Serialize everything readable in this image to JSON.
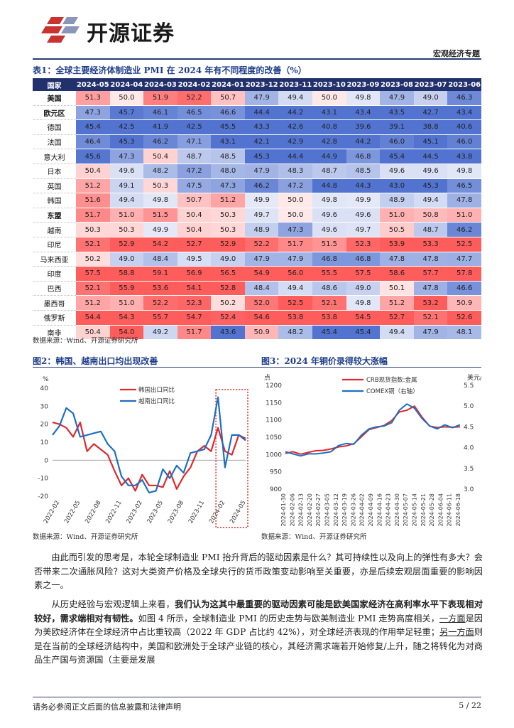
{
  "header": {
    "brand": "开源证券",
    "report_type": "宏观经济专题",
    "brand_color": "#c9322f"
  },
  "table1": {
    "caption": "表1：全球主要经济体制造业 PMI 在 2024 年有不同程度的改善（%）",
    "corner_label": "国家",
    "columns": [
      "2024-05",
      "2024-04",
      "2024-03",
      "2024-02",
      "2024-01",
      "2023-12",
      "2023-11",
      "2023-10",
      "2023-09",
      "2023-08",
      "2023-07",
      "2023-06"
    ],
    "rows": [
      {
        "name": "美国",
        "bold": true,
        "values": [
          51.3,
          50.0,
          51.9,
          52.2,
          50.7,
          47.9,
          49.4,
          50.0,
          49.8,
          47.9,
          49.0,
          46.3
        ]
      },
      {
        "name": "欧元区",
        "bold": true,
        "values": [
          47.3,
          45.7,
          46.1,
          46.5,
          46.6,
          44.4,
          44.2,
          43.1,
          43.4,
          43.5,
          42.7,
          43.4
        ]
      },
      {
        "name": "德国",
        "bold": false,
        "values": [
          45.4,
          42.5,
          41.9,
          42.5,
          45.5,
          43.3,
          42.6,
          40.8,
          39.6,
          39.1,
          38.8,
          40.6
        ]
      },
      {
        "name": "法国",
        "bold": false,
        "values": [
          46.4,
          45.3,
          46.2,
          47.1,
          43.1,
          42.1,
          42.9,
          42.8,
          44.2,
          46.0,
          45.1,
          46.0
        ]
      },
      {
        "name": "意大利",
        "bold": false,
        "values": [
          45.6,
          47.3,
          50.4,
          48.7,
          48.5,
          45.3,
          44.4,
          44.9,
          46.8,
          45.4,
          44.5,
          43.8
        ]
      },
      {
        "name": "日本",
        "bold": false,
        "values": [
          50.4,
          49.6,
          48.2,
          47.2,
          48.0,
          47.9,
          48.3,
          48.7,
          48.5,
          49.6,
          49.6,
          49.8
        ]
      },
      {
        "name": "英国",
        "bold": false,
        "values": [
          51.2,
          49.1,
          50.3,
          47.5,
          47.3,
          46.2,
          47.2,
          44.8,
          44.3,
          43.0,
          45.3,
          46.5
        ]
      },
      {
        "name": "韩国",
        "bold": false,
        "values": [
          51.6,
          49.4,
          49.8,
          50.7,
          51.2,
          49.9,
          50.0,
          49.8,
          49.9,
          48.9,
          49.4,
          47.8
        ]
      },
      {
        "name": "东盟",
        "bold": true,
        "values": [
          51.7,
          51.0,
          51.5,
          50.4,
          50.3,
          49.7,
          50.0,
          49.6,
          49.6,
          51.0,
          50.8,
          51.0
        ]
      },
      {
        "name": "越南",
        "bold": false,
        "values": [
          50.3,
          50.3,
          49.9,
          50.4,
          50.3,
          48.9,
          47.3,
          49.6,
          49.7,
          50.5,
          48.7,
          46.2
        ]
      },
      {
        "name": "印尼",
        "bold": false,
        "values": [
          52.1,
          52.9,
          54.2,
          52.7,
          52.9,
          52.2,
          51.7,
          51.5,
          52.3,
          53.9,
          53.3,
          52.5
        ]
      },
      {
        "name": "马来西亚",
        "bold": false,
        "values": [
          50.2,
          49.0,
          48.4,
          49.5,
          49.0,
          47.9,
          47.9,
          46.8,
          46.8,
          47.8,
          47.8,
          47.7
        ]
      },
      {
        "name": "印度",
        "bold": false,
        "values": [
          57.5,
          58.8,
          59.1,
          56.9,
          56.5,
          54.9,
          56.0,
          55.5,
          57.5,
          58.6,
          57.7,
          57.8
        ]
      },
      {
        "name": "巴西",
        "bold": false,
        "values": [
          52.1,
          55.9,
          53.6,
          54.1,
          52.8,
          48.4,
          49.4,
          48.6,
          49.0,
          50.1,
          47.8,
          46.6
        ]
      },
      {
        "name": "墨西哥",
        "bold": false,
        "values": [
          51.2,
          51.0,
          52.2,
          52.3,
          50.2,
          52.0,
          52.5,
          52.1,
          49.8,
          51.2,
          53.2,
          50.9
        ]
      },
      {
        "name": "俄罗斯",
        "bold": false,
        "values": [
          54.4,
          54.3,
          55.7,
          54.7,
          52.4,
          54.6,
          53.8,
          53.8,
          54.5,
          52.7,
          52.1,
          52.6
        ]
      },
      {
        "name": "南非",
        "bold": false,
        "values": [
          50.4,
          54.0,
          49.2,
          51.7,
          43.6,
          50.9,
          48.2,
          45.4,
          45.4,
          49.4,
          47.9,
          48.1
        ]
      }
    ],
    "source": "数据来源：Wind、开源证券研究所"
  },
  "figure2": {
    "caption": "图2：韩国、越南出口均出现改善",
    "unit": "%",
    "source": "数据来源：Wind、开源证券研究所",
    "chart_data": {
      "type": "line",
      "title": "",
      "ylim": [
        -20,
        40
      ],
      "yticks": [
        -20,
        -10,
        0,
        10,
        20,
        30,
        40
      ],
      "xtick_labels": [
        "2022-02",
        "2022-05",
        "2022-08",
        "2022-11",
        "2023-02",
        "2023-05",
        "2023-08",
        "2023-11",
        "2024-02",
        "2024-05"
      ],
      "x": [
        "2022-01",
        "2022-02",
        "2022-03",
        "2022-04",
        "2022-05",
        "2022-06",
        "2022-07",
        "2022-08",
        "2022-09",
        "2022-10",
        "2022-11",
        "2022-12",
        "2023-01",
        "2023-02",
        "2023-03",
        "2023-04",
        "2023-05",
        "2023-06",
        "2023-07",
        "2023-08",
        "2023-09",
        "2023-10",
        "2023-11",
        "2023-12",
        "2024-01",
        "2024-02",
        "2024-03",
        "2024-04",
        "2024-05"
      ],
      "series": [
        {
          "name": "韩国出口同比",
          "color": "#e0282c",
          "values": [
            21,
            20,
            18,
            13,
            21,
            5,
            9,
            6,
            3,
            -6,
            -14,
            -10,
            -17,
            -8,
            -14,
            -14,
            -15,
            -6,
            -16,
            -9,
            -4,
            5,
            8,
            5,
            18,
            5,
            3,
            14,
            12
          ]
        },
        {
          "name": "越南出口同比",
          "color": "#1e6fc2",
          "values": [
            14,
            19,
            29,
            26,
            13,
            14,
            15,
            16,
            9,
            5,
            -9,
            -14,
            -14,
            -11,
            -18,
            -17,
            -5,
            -10,
            -3,
            -7,
            4,
            5,
            6,
            14,
            35,
            -4,
            14,
            14,
            11
          ]
        }
      ]
    }
  },
  "figure3": {
    "caption": "图3：2024 年铜价录得较大涨幅",
    "left_unit": "点",
    "right_unit": "美元/磅",
    "source": "数据来源：Wind、开源证券研究所",
    "chart_data": {
      "type": "line",
      "title": "",
      "y_left_lim": [
        900,
        1200
      ],
      "y_left_ticks": [
        900,
        950,
        1000,
        1050,
        1100,
        1150,
        1200
      ],
      "y_right_lim": [
        3.0,
        5.5
      ],
      "y_right_ticks": [
        3.0,
        3.5,
        4.0,
        4.5,
        5.0,
        5.5
      ],
      "xtick_labels": [
        "2024-01-30",
        "2024-02-06",
        "2024-02-13",
        "2024-02-20",
        "2024-02-27",
        "2024-03-05",
        "2024-03-12",
        "2024-03-19",
        "2024-03-26",
        "2024-04-02",
        "2024-04-09",
        "2024-04-16",
        "2024-04-23",
        "2024-04-30",
        "2024-05-07",
        "2024-05-14",
        "2024-05-21",
        "2024-05-28",
        "2024-06-04",
        "2024-06-11",
        "2024-06-18"
      ],
      "series": [
        {
          "name": "CRB现货指数:金属",
          "axis": "left",
          "color": "#e0282c",
          "values": [
            1003,
            1008,
            1001,
            1006,
            1011,
            1012,
            1016,
            1022,
            1025,
            1031,
            1051,
            1072,
            1078,
            1084,
            1098,
            1123,
            1128,
            1140,
            1108,
            1082,
            1078,
            1080,
            1079,
            1080
          ]
        },
        {
          "name": "COMEX铜（右轴）",
          "axis": "right",
          "color": "#1e6fc2",
          "values": [
            3.9,
            3.85,
            3.8,
            3.85,
            3.85,
            3.87,
            3.9,
            4.05,
            4.1,
            4.08,
            4.3,
            4.45,
            4.5,
            4.52,
            4.6,
            4.9,
            5.05,
            4.95,
            4.7,
            4.52,
            4.45,
            4.55,
            4.48,
            4.55
          ]
        }
      ]
    }
  },
  "body": {
    "para1": "由此而引发的思考是，本轮全球制造业 PMI 抬升背后的驱动因素是什么？其可持续性以及向上的弹性有多大？会否带来二次通胀风险？这对大类资产价格及全球央行的货币政策变动影响至关重要，亦是后续宏观层面重要的影响因素之一。",
    "para2_plain1": "从历史经验与宏观逻辑上来看，",
    "para2_bold": "我们认为这其中最重要的驱动因素可能是欧美国家经济在高利率水平下表现相对较好，需求端相对有韧性。",
    "para2_plain2": "如图 4 所示，全球制造业 PMI 的历史走势与欧美制造业 PMI 走势高度相关，",
    "para2_u1": "一方面",
    "para2_plain3": "是因为美欧经济体在全球经济中占比重较高（2022 年 GDP 占比约 42%），对全球经济表现的作用举足轻重；",
    "para2_u2": "另一方面",
    "para2_plain4": "则是在当前的全球经济结构中，美国和欧洲处于全球产业链的核心，其经济需求端若开始修复/上升，随之将转化为对商品生产国与资源国（主要是发展"
  },
  "footer": {
    "disclaimer": "请务必参阅正文后面的信息披露和法律声明",
    "page": "5 / 22"
  }
}
